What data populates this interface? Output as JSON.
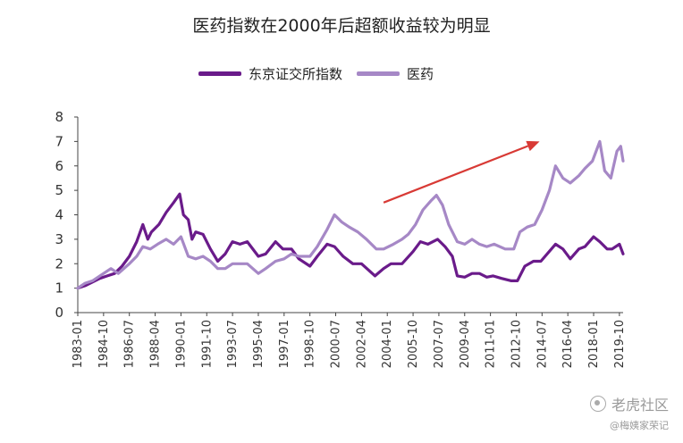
{
  "chart_data": {
    "type": "line",
    "title": "医药指数在2000年后超额收益较为明显",
    "xlabel": "",
    "ylabel": "",
    "ylim": [
      0,
      8
    ],
    "yticks": [
      0,
      1,
      2,
      3,
      4,
      5,
      6,
      7,
      8
    ],
    "xlim": [
      "1983-01",
      "2020-01"
    ],
    "xticks": [
      "1983-01",
      "1984-10",
      "1986-07",
      "1988-04",
      "1990-01",
      "1991-10",
      "1993-07",
      "1995-04",
      "1997-01",
      "1998-10",
      "2000-07",
      "2002-04",
      "2004-01",
      "2005-10",
      "2007-07",
      "2009-04",
      "2011-01",
      "2012-10",
      "2014-07",
      "2016-04",
      "2018-01",
      "2019-10"
    ],
    "grid": false,
    "legend_position": "top",
    "series": [
      {
        "name": "东京证交所指数",
        "color": "#6a1b8a",
        "points": [
          [
            "1983-01",
            1.0
          ],
          [
            "1983-07",
            1.1
          ],
          [
            "1984-01",
            1.25
          ],
          [
            "1984-07",
            1.4
          ],
          [
            "1985-01",
            1.5
          ],
          [
            "1985-07",
            1.6
          ],
          [
            "1986-01",
            1.9
          ],
          [
            "1986-07",
            2.3
          ],
          [
            "1987-01",
            2.9
          ],
          [
            "1987-06",
            3.6
          ],
          [
            "1987-10",
            3.0
          ],
          [
            "1988-01",
            3.3
          ],
          [
            "1988-07",
            3.6
          ],
          [
            "1989-01",
            4.1
          ],
          [
            "1989-07",
            4.5
          ],
          [
            "1989-12",
            4.85
          ],
          [
            "1990-03",
            4.0
          ],
          [
            "1990-07",
            3.8
          ],
          [
            "1990-10",
            3.0
          ],
          [
            "1991-01",
            3.3
          ],
          [
            "1991-07",
            3.2
          ],
          [
            "1992-01",
            2.6
          ],
          [
            "1992-07",
            2.1
          ],
          [
            "1993-01",
            2.4
          ],
          [
            "1993-07",
            2.9
          ],
          [
            "1994-01",
            2.8
          ],
          [
            "1994-07",
            2.9
          ],
          [
            "1995-04",
            2.3
          ],
          [
            "1995-10",
            2.4
          ],
          [
            "1996-06",
            2.9
          ],
          [
            "1996-12",
            2.6
          ],
          [
            "1997-07",
            2.6
          ],
          [
            "1998-01",
            2.2
          ],
          [
            "1998-10",
            1.9
          ],
          [
            "1999-04",
            2.3
          ],
          [
            "1999-12",
            2.8
          ],
          [
            "2000-06",
            2.7
          ],
          [
            "2001-01",
            2.3
          ],
          [
            "2001-09",
            2.0
          ],
          [
            "2002-04",
            2.0
          ],
          [
            "2003-03",
            1.5
          ],
          [
            "2003-10",
            1.8
          ],
          [
            "2004-04",
            2.0
          ],
          [
            "2005-01",
            2.0
          ],
          [
            "2005-10",
            2.5
          ],
          [
            "2006-04",
            2.9
          ],
          [
            "2006-10",
            2.8
          ],
          [
            "2007-06",
            3.0
          ],
          [
            "2007-12",
            2.7
          ],
          [
            "2008-06",
            2.3
          ],
          [
            "2008-10",
            1.5
          ],
          [
            "2009-04",
            1.45
          ],
          [
            "2009-10",
            1.6
          ],
          [
            "2010-04",
            1.6
          ],
          [
            "2010-10",
            1.45
          ],
          [
            "2011-03",
            1.5
          ],
          [
            "2011-10",
            1.4
          ],
          [
            "2012-06",
            1.3
          ],
          [
            "2012-11",
            1.3
          ],
          [
            "2013-05",
            1.9
          ],
          [
            "2013-12",
            2.1
          ],
          [
            "2014-06",
            2.1
          ],
          [
            "2015-06",
            2.8
          ],
          [
            "2015-12",
            2.6
          ],
          [
            "2016-06",
            2.2
          ],
          [
            "2017-01",
            2.6
          ],
          [
            "2017-06",
            2.7
          ],
          [
            "2018-01",
            3.1
          ],
          [
            "2018-06",
            2.9
          ],
          [
            "2018-12",
            2.6
          ],
          [
            "2019-04",
            2.6
          ],
          [
            "2019-10",
            2.8
          ],
          [
            "2020-01",
            2.4
          ]
        ]
      },
      {
        "name": "医药",
        "color": "#a688c6",
        "points": [
          [
            "1983-01",
            1.0
          ],
          [
            "1983-07",
            1.2
          ],
          [
            "1984-01",
            1.3
          ],
          [
            "1984-07",
            1.5
          ],
          [
            "1985-04",
            1.8
          ],
          [
            "1985-10",
            1.6
          ],
          [
            "1986-07",
            2.0
          ],
          [
            "1987-01",
            2.3
          ],
          [
            "1987-06",
            2.7
          ],
          [
            "1987-12",
            2.6
          ],
          [
            "1988-06",
            2.8
          ],
          [
            "1989-01",
            3.0
          ],
          [
            "1989-07",
            2.8
          ],
          [
            "1990-01",
            3.1
          ],
          [
            "1990-07",
            2.3
          ],
          [
            "1991-01",
            2.2
          ],
          [
            "1991-07",
            2.3
          ],
          [
            "1992-01",
            2.1
          ],
          [
            "1992-07",
            1.8
          ],
          [
            "1993-01",
            1.8
          ],
          [
            "1993-07",
            2.0
          ],
          [
            "1994-01",
            2.0
          ],
          [
            "1994-07",
            2.0
          ],
          [
            "1995-04",
            1.6
          ],
          [
            "1995-10",
            1.8
          ],
          [
            "1996-06",
            2.1
          ],
          [
            "1997-01",
            2.2
          ],
          [
            "1997-07",
            2.4
          ],
          [
            "1998-01",
            2.3
          ],
          [
            "1998-10",
            2.3
          ],
          [
            "1999-04",
            2.7
          ],
          [
            "1999-12",
            3.4
          ],
          [
            "2000-06",
            4.0
          ],
          [
            "2000-12",
            3.7
          ],
          [
            "2001-06",
            3.5
          ],
          [
            "2002-01",
            3.3
          ],
          [
            "2002-08",
            3.0
          ],
          [
            "2003-04",
            2.6
          ],
          [
            "2003-10",
            2.6
          ],
          [
            "2004-06",
            2.8
          ],
          [
            "2005-01",
            3.0
          ],
          [
            "2005-06",
            3.2
          ],
          [
            "2005-12",
            3.6
          ],
          [
            "2006-06",
            4.2
          ],
          [
            "2007-01",
            4.6
          ],
          [
            "2007-05",
            4.8
          ],
          [
            "2007-10",
            4.4
          ],
          [
            "2008-03",
            3.6
          ],
          [
            "2008-10",
            2.9
          ],
          [
            "2009-04",
            2.8
          ],
          [
            "2009-10",
            3.0
          ],
          [
            "2010-04",
            2.8
          ],
          [
            "2010-10",
            2.7
          ],
          [
            "2011-04",
            2.8
          ],
          [
            "2012-01",
            2.6
          ],
          [
            "2012-08",
            2.6
          ],
          [
            "2013-01",
            3.3
          ],
          [
            "2013-07",
            3.5
          ],
          [
            "2014-01",
            3.6
          ],
          [
            "2014-07",
            4.2
          ],
          [
            "2015-01",
            5.0
          ],
          [
            "2015-06",
            6.0
          ],
          [
            "2015-12",
            5.5
          ],
          [
            "2016-06",
            5.3
          ],
          [
            "2017-01",
            5.6
          ],
          [
            "2017-06",
            5.9
          ],
          [
            "2017-12",
            6.2
          ],
          [
            "2018-06",
            7.0
          ],
          [
            "2018-10",
            5.8
          ],
          [
            "2019-03",
            5.5
          ],
          [
            "2019-08",
            6.6
          ],
          [
            "2019-11",
            6.8
          ],
          [
            "2020-01",
            6.2
          ]
        ]
      }
    ],
    "annotation_arrow": {
      "from": [
        "2003-10",
        4.5
      ],
      "to": [
        "2014-05",
        7.0
      ],
      "color": "#d83a35"
    }
  },
  "watermark": {
    "brand": "老虎社区",
    "sub": "@梅姨家荣记"
  }
}
